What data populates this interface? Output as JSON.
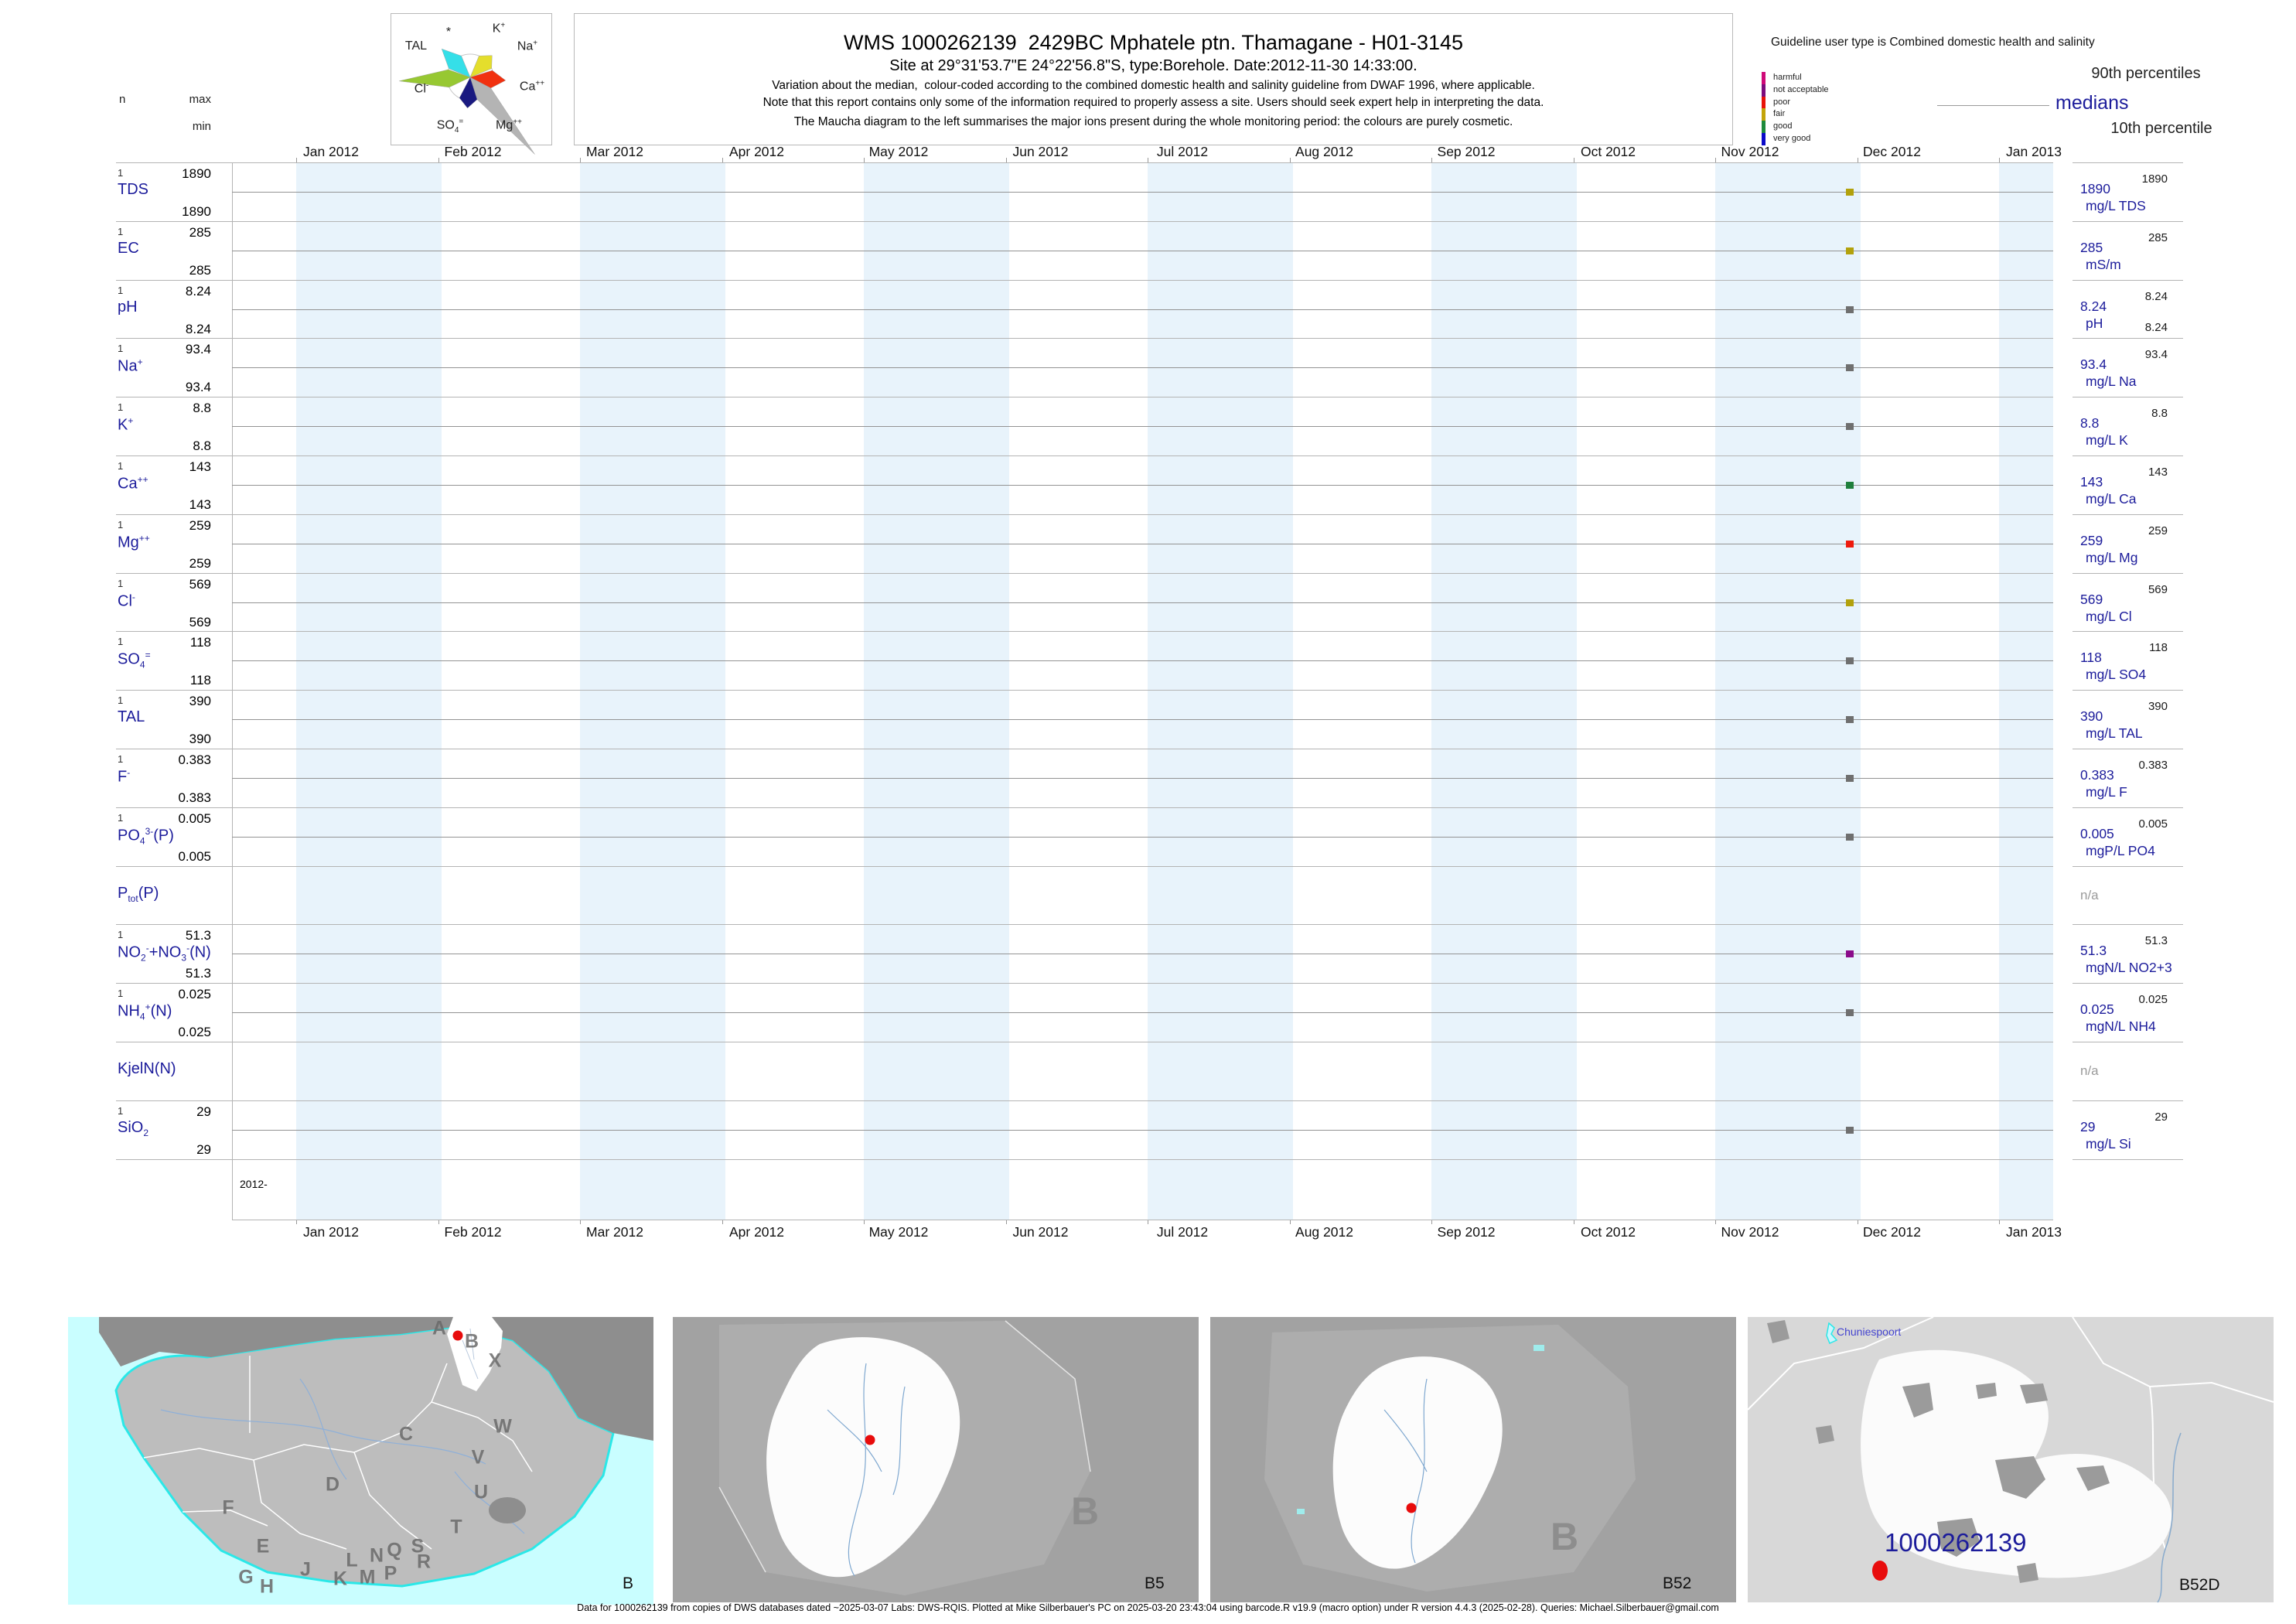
{
  "header": {
    "title": "WMS 1000262139  2429BC Mphatele ptn. Thamagane - H01-3145",
    "subtitle": "Site at 29°31'53.7\"E 24°22'56.8\"S, type:Borehole. Date:2012-11-30 14:33:00.",
    "note1": "Variation about the median,  colour-coded according to the combined domestic health and salinity guideline from DWAF 1996, where applicable.",
    "note2": "Note that this report contains only some of the information required to properly assess a site. Users should seek expert help in interpreting the data.",
    "note3": "The Maucha diagram to the left summarises the major ions present during the whole monitoring period: the colours are purely cosmetic.",
    "col_n": "n",
    "col_max": "max",
    "col_min": "min"
  },
  "maucha": {
    "labels": [
      "*",
      "K^+^",
      "Na^+^",
      "Ca^++^",
      "Mg^++^",
      "SO~4~^=^",
      "Cl^-^",
      "TAL"
    ]
  },
  "legend": {
    "guideline_text": "Guideline user type is Combined domestic health and salinity",
    "classes": [
      {
        "label": "harmful",
        "color": "#cf0a78"
      },
      {
        "label": "not acceptable",
        "color": "#7d0d7d"
      },
      {
        "label": "poor",
        "color": "#e81309"
      },
      {
        "label": "fair",
        "color": "#c3a40a"
      },
      {
        "label": "good",
        "color": "#1e8a3c"
      },
      {
        "label": "very good",
        "color": "#0a0ac8"
      }
    ],
    "p90_label": "90th percentiles",
    "median_label": "medians",
    "p10_label": "10th percentile"
  },
  "axis": {
    "months": [
      "Jan 2012",
      "Feb 2012",
      "Mar 2012",
      "Apr 2012",
      "May 2012",
      "Jun 2012",
      "Jul 2012",
      "Aug 2012",
      "Sep 2012",
      "Oct 2012",
      "Nov 2012",
      "Dec 2012",
      "Jan 2013"
    ],
    "year_label": "2012-"
  },
  "rows": [
    {
      "name": "TDS",
      "n": "1",
      "max": "1890",
      "min": "1890",
      "p90": "1890",
      "median": "1890",
      "unit": "mg/L TDS",
      "status_color": "#b2a10c"
    },
    {
      "name": "EC",
      "n": "1",
      "max": "285",
      "min": "285",
      "p90": "285",
      "median": "285",
      "unit": "mS/m",
      "status_color": "#b2a10c"
    },
    {
      "name": "pH",
      "n": "1",
      "max": "8.24",
      "min": "8.24",
      "p90": "8.24",
      "p10": "8.24",
      "median": "8.24",
      "unit": "pH",
      "status_color": "#6f6f6f"
    },
    {
      "name": "Na^+^",
      "n": "1",
      "max": "93.4",
      "min": "93.4",
      "p90": "93.4",
      "median": "93.4",
      "unit": "mg/L Na",
      "status_color": "#6f6f6f"
    },
    {
      "name": "K^+^",
      "n": "1",
      "max": "8.8",
      "min": "8.8",
      "p90": "8.8",
      "median": "8.8",
      "unit": "mg/L K",
      "status_color": "#6f6f6f"
    },
    {
      "name": "Ca^++^",
      "n": "1",
      "max": "143",
      "min": "143",
      "p90": "143",
      "median": "143",
      "unit": "mg/L Ca",
      "status_color": "#1f7f3c"
    },
    {
      "name": "Mg^++^",
      "n": "1",
      "max": "259",
      "min": "259",
      "p90": "259",
      "median": "259",
      "unit": "mg/L Mg",
      "status_color": "#ee1a0d"
    },
    {
      "name": "Cl^-^",
      "n": "1",
      "max": "569",
      "min": "569",
      "p90": "569",
      "median": "569",
      "unit": "mg/L Cl",
      "status_color": "#b2a10c"
    },
    {
      "name": "SO~4~^=^",
      "n": "1",
      "max": "118",
      "min": "118",
      "p90": "118",
      "median": "118",
      "unit": "mg/L SO4",
      "status_color": "#6f6f6f"
    },
    {
      "name": "TAL",
      "n": "1",
      "max": "390",
      "min": "390",
      "p90": "390",
      "median": "390",
      "unit": "mg/L TAL",
      "status_color": "#6f6f6f"
    },
    {
      "name": "F^-^",
      "n": "1",
      "max": "0.383",
      "min": "0.383",
      "p90": "0.383",
      "median": "0.383",
      "unit": "mg/L F",
      "status_color": "#6f6f6f"
    },
    {
      "name": "PO~4~^3-^(P)",
      "n": "1",
      "max": "0.005",
      "min": "0.005",
      "p90": "0.005",
      "median": "0.005",
      "unit": "mgP/L PO4",
      "status_color": "#6f6f6f"
    },
    {
      "name": "P~tot~(P)",
      "na": "n/a"
    },
    {
      "name": "NO~2~^-^+NO~3~^-^(N)",
      "n": "1",
      "max": "51.3",
      "min": "51.3",
      "p90": "51.3",
      "median": "51.3",
      "unit": "mgN/L NO2+3",
      "status_color": "#8a0b8a"
    },
    {
      "name": "NH~4~^+^(N)",
      "n": "1",
      "max": "0.025",
      "min": "0.025",
      "p90": "0.025",
      "median": "0.025",
      "unit": "mgN/L NH4",
      "status_color": "#6f6f6f"
    },
    {
      "name": "KjelN(N)",
      "na": "n/a"
    },
    {
      "name": "SiO~2~",
      "n": "1",
      "max": "29",
      "min": "29",
      "p90": "29",
      "median": "29",
      "unit": "mg/L Si",
      "status_color": "#6f6f6f"
    }
  ],
  "maps": {
    "panel1": {
      "label": "B",
      "regions": [
        "A",
        "B",
        "X",
        "W",
        "C",
        "V",
        "U",
        "D",
        "T",
        "F",
        "E",
        "S",
        "Q",
        "R",
        "L",
        "N",
        "M",
        "P",
        "J",
        "K",
        "G",
        "H"
      ]
    },
    "panel2": {
      "label": "B5",
      "watermark": "B"
    },
    "panel3": {
      "label": "B52",
      "watermark": "B"
    },
    "panel4": {
      "label": "B52D",
      "station": "1000262139",
      "place": "Chuniespoort"
    }
  },
  "footer": "Data for 1000262139 from copies of DWS databases dated ~2025-03-07 Labs: DWS-RQIS. Plotted at Mike Silberbauer's PC on 2025-03-20 23:43:04 using barcode.R v19.9 (macro option) under R version 4.4.3 (2025-02-28). Queries: Michael.Silberbauer@gmail.com",
  "chart_data": {
    "type": "scatter",
    "title": "WMS 1000262139 2429BC Mphatele ptn. Thamagane - H01-3145",
    "x_range": [
      "Jan 2012",
      "Jan 2013"
    ],
    "sample_date": "2012-11-30 14:33:00",
    "n_samples": 1,
    "legend_position": "top-right",
    "grid": "alternating month stripes",
    "series": [
      {
        "name": "TDS",
        "unit": "mg/L TDS",
        "x": "2012-11-30",
        "value": 1890,
        "median": 1890,
        "max": 1890,
        "min": 1890,
        "p90": 1890,
        "status": "fair"
      },
      {
        "name": "EC",
        "unit": "mS/m",
        "x": "2012-11-30",
        "value": 285,
        "median": 285,
        "max": 285,
        "min": 285,
        "p90": 285,
        "status": "fair"
      },
      {
        "name": "pH",
        "unit": "pH",
        "x": "2012-11-30",
        "value": 8.24,
        "median": 8.24,
        "max": 8.24,
        "min": 8.24,
        "p90": 8.24,
        "p10": 8.24,
        "status": "unclassified"
      },
      {
        "name": "Na+",
        "unit": "mg/L Na",
        "x": "2012-11-30",
        "value": 93.4,
        "median": 93.4,
        "max": 93.4,
        "min": 93.4,
        "p90": 93.4,
        "status": "unclassified"
      },
      {
        "name": "K+",
        "unit": "mg/L K",
        "x": "2012-11-30",
        "value": 8.8,
        "median": 8.8,
        "max": 8.8,
        "min": 8.8,
        "p90": 8.8,
        "status": "unclassified"
      },
      {
        "name": "Ca++",
        "unit": "mg/L Ca",
        "x": "2012-11-30",
        "value": 143,
        "median": 143,
        "max": 143,
        "min": 143,
        "p90": 143,
        "status": "good"
      },
      {
        "name": "Mg++",
        "unit": "mg/L Mg",
        "x": "2012-11-30",
        "value": 259,
        "median": 259,
        "max": 259,
        "min": 259,
        "p90": 259,
        "status": "poor"
      },
      {
        "name": "Cl-",
        "unit": "mg/L Cl",
        "x": "2012-11-30",
        "value": 569,
        "median": 569,
        "max": 569,
        "min": 569,
        "p90": 569,
        "status": "fair"
      },
      {
        "name": "SO4=",
        "unit": "mg/L SO4",
        "x": "2012-11-30",
        "value": 118,
        "median": 118,
        "max": 118,
        "min": 118,
        "p90": 118,
        "status": "unclassified"
      },
      {
        "name": "TAL",
        "unit": "mg/L TAL",
        "x": "2012-11-30",
        "value": 390,
        "median": 390,
        "max": 390,
        "min": 390,
        "p90": 390,
        "status": "unclassified"
      },
      {
        "name": "F-",
        "unit": "mg/L F",
        "x": "2012-11-30",
        "value": 0.383,
        "median": 0.383,
        "max": 0.383,
        "min": 0.383,
        "p90": 0.383,
        "status": "unclassified"
      },
      {
        "name": "PO4 3-(P)",
        "unit": "mgP/L PO4",
        "x": "2012-11-30",
        "value": 0.005,
        "median": 0.005,
        "max": 0.005,
        "min": 0.005,
        "p90": 0.005,
        "status": "unclassified"
      },
      {
        "name": "Ptot(P)",
        "value": null,
        "note": "n/a"
      },
      {
        "name": "NO2-+NO3-(N)",
        "unit": "mgN/L NO2+3",
        "x": "2012-11-30",
        "value": 51.3,
        "median": 51.3,
        "max": 51.3,
        "min": 51.3,
        "p90": 51.3,
        "status": "not acceptable"
      },
      {
        "name": "NH4+(N)",
        "unit": "mgN/L NH4",
        "x": "2012-11-30",
        "value": 0.025,
        "median": 0.025,
        "max": 0.025,
        "min": 0.025,
        "p90": 0.025,
        "status": "unclassified"
      },
      {
        "name": "KjelN(N)",
        "value": null,
        "note": "n/a"
      },
      {
        "name": "SiO2",
        "unit": "mg/L Si",
        "x": "2012-11-30",
        "value": 29,
        "median": 29,
        "max": 29,
        "min": 29,
        "p90": 29,
        "status": "unclassified"
      }
    ]
  }
}
